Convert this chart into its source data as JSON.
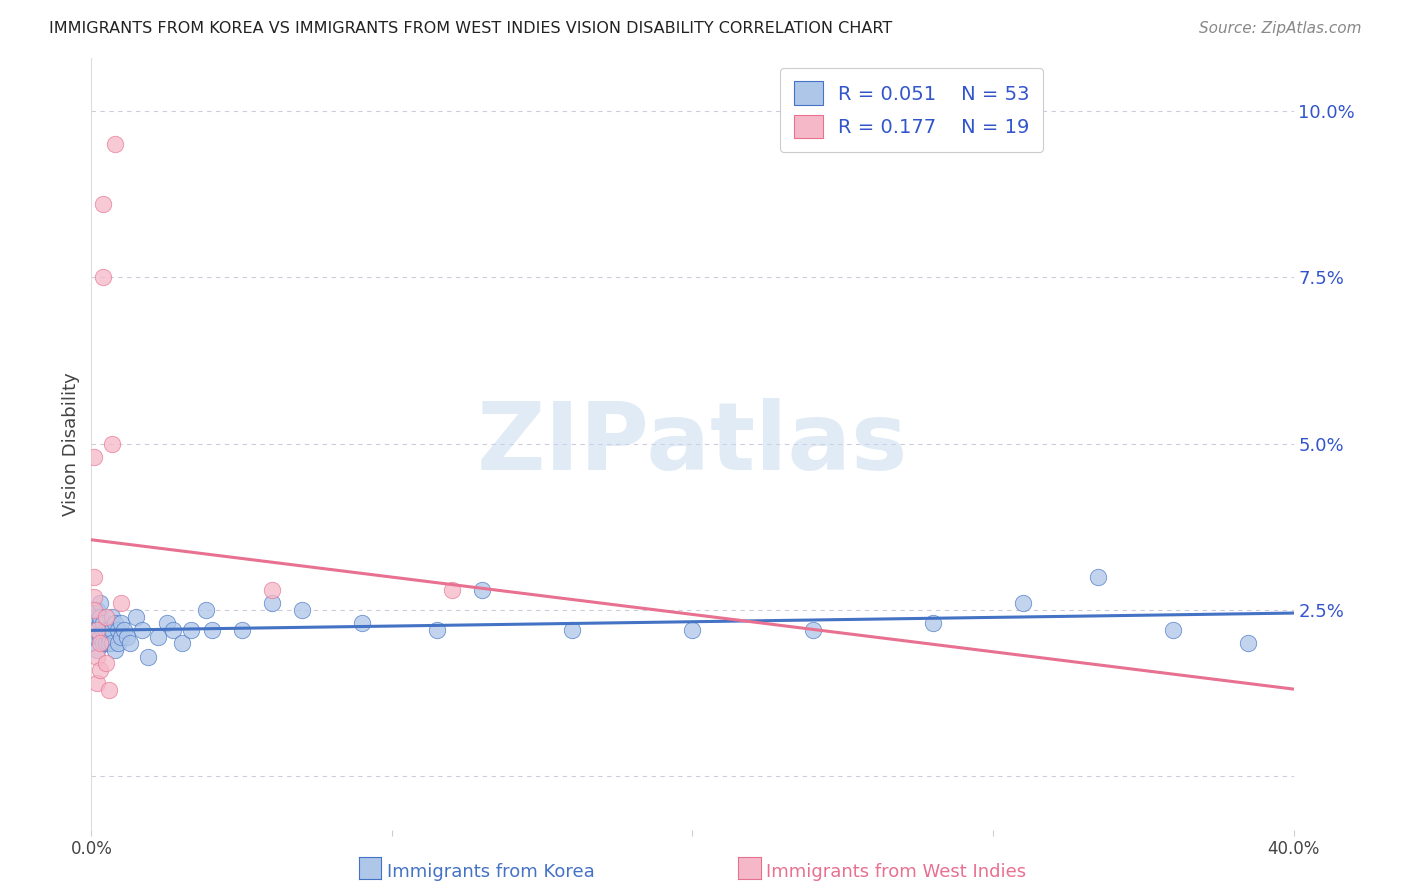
{
  "title": "IMMIGRANTS FROM KOREA VS IMMIGRANTS FROM WEST INDIES VISION DISABILITY CORRELATION CHART",
  "source": "Source: ZipAtlas.com",
  "xlabel_korea": "Immigrants from Korea",
  "xlabel_wi": "Immigrants from West Indies",
  "ylabel": "Vision Disability",
  "watermark": "ZIPatlas",
  "legend_korea_R": "0.051",
  "legend_korea_N": "53",
  "legend_wi_R": "0.177",
  "legend_wi_N": "19",
  "korea_fill": "#aec6e8",
  "korea_edge": "#4472c4",
  "wi_fill": "#f4b8c8",
  "wi_edge": "#e87090",
  "korea_line_color": "#4472c4",
  "wi_line_color": "#e87090",
  "title_color": "#222222",
  "axis_value_color": "#3355cc",
  "grid_color": "#ccccdd",
  "bg_color": "#ffffff",
  "xlim": [
    0.0,
    0.4
  ],
  "ylim": [
    -0.008,
    0.108
  ],
  "yticks": [
    0.0,
    0.025,
    0.05,
    0.075,
    0.1
  ],
  "xticks": [
    0.0,
    0.1,
    0.2,
    0.3,
    0.4
  ],
  "korea_x": [
    0.001,
    0.001,
    0.002,
    0.002,
    0.002,
    0.003,
    0.003,
    0.003,
    0.003,
    0.004,
    0.004,
    0.004,
    0.005,
    0.005,
    0.006,
    0.006,
    0.006,
    0.007,
    0.007,
    0.007,
    0.008,
    0.008,
    0.009,
    0.009,
    0.01,
    0.01,
    0.011,
    0.012,
    0.013,
    0.015,
    0.017,
    0.019,
    0.022,
    0.025,
    0.027,
    0.03,
    0.033,
    0.038,
    0.04,
    0.05,
    0.06,
    0.07,
    0.09,
    0.115,
    0.13,
    0.16,
    0.2,
    0.24,
    0.28,
    0.31,
    0.335,
    0.36,
    0.385
  ],
  "korea_y": [
    0.024,
    0.022,
    0.025,
    0.021,
    0.019,
    0.021,
    0.023,
    0.026,
    0.024,
    0.022,
    0.02,
    0.023,
    0.02,
    0.022,
    0.021,
    0.02,
    0.022,
    0.022,
    0.024,
    0.02,
    0.019,
    0.023,
    0.022,
    0.02,
    0.021,
    0.023,
    0.022,
    0.021,
    0.02,
    0.024,
    0.022,
    0.018,
    0.021,
    0.023,
    0.022,
    0.02,
    0.022,
    0.025,
    0.022,
    0.022,
    0.026,
    0.025,
    0.023,
    0.022,
    0.028,
    0.022,
    0.022,
    0.022,
    0.023,
    0.026,
    0.03,
    0.022,
    0.02
  ],
  "wi_x": [
    0.001,
    0.001,
    0.001,
    0.001,
    0.002,
    0.002,
    0.002,
    0.003,
    0.003,
    0.004,
    0.004,
    0.005,
    0.005,
    0.006,
    0.007,
    0.008,
    0.01,
    0.06,
    0.12
  ],
  "wi_y": [
    0.03,
    0.027,
    0.025,
    0.048,
    0.022,
    0.018,
    0.014,
    0.02,
    0.016,
    0.075,
    0.086,
    0.024,
    0.017,
    0.013,
    0.05,
    0.095,
    0.026,
    0.028,
    0.028
  ]
}
